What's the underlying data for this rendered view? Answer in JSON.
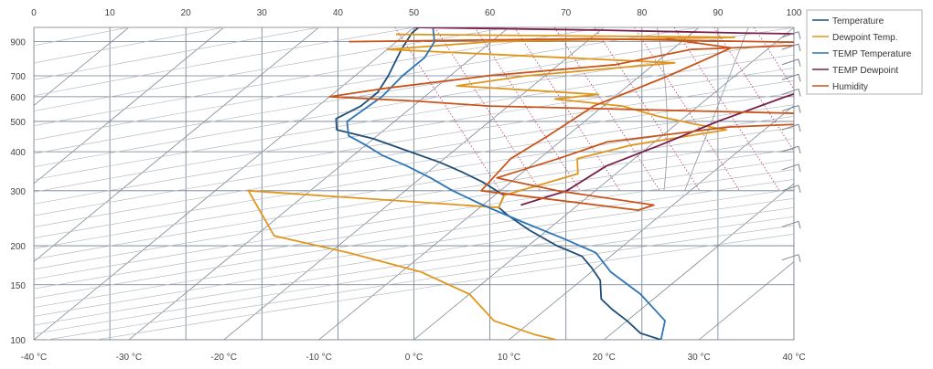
{
  "chart_data": {
    "type": "line",
    "title": "",
    "top_axis": {
      "label": "",
      "ticks": [
        "0",
        "10",
        "20",
        "30",
        "40",
        "50",
        "60",
        "70",
        "80",
        "90",
        "100"
      ],
      "range": [
        0,
        100
      ]
    },
    "bottom_axis": {
      "label": "",
      "ticks": [
        "-40 °C",
        "-30 °C",
        "-20 °C",
        "-10 °C",
        "0 °C",
        "10 °C",
        "20 °C",
        "30 °C",
        "40 °C"
      ],
      "range": [
        -40,
        40
      ]
    },
    "left_axis": {
      "label": "",
      "scale": "log-pressure",
      "ticks": [
        "100",
        "150",
        "200",
        "300",
        "400",
        "500",
        "600",
        "700",
        "900"
      ],
      "range": [
        1000,
        100
      ]
    },
    "legend": {
      "position": "top-right",
      "entries": [
        "Temperature",
        "Dewpoint Temp.",
        "TEMP Temperature",
        "TEMP Dewpoint",
        "Humidity"
      ]
    },
    "colors": {
      "Temperature": "#1f4e79",
      "Dewpoint Temp.": "#e0961c",
      "TEMP Temperature": "#2e75b6",
      "TEMP Dewpoint": "#7b1f4a",
      "Humidity": "#c9541a"
    },
    "series": [
      {
        "name": "Temperature",
        "points": [
          [
            -39.5,
            1000
          ],
          [
            -39.5,
            960
          ],
          [
            -38.5,
            850
          ],
          [
            -36.5,
            700
          ],
          [
            -35.5,
            620
          ],
          [
            -35.5,
            560
          ],
          [
            -36.5,
            510
          ],
          [
            -35,
            470
          ],
          [
            -30,
            440
          ],
          [
            -24.5,
            400
          ],
          [
            -20,
            370
          ],
          [
            -16.5,
            345
          ],
          [
            -13,
            320
          ],
          [
            -9,
            290
          ],
          [
            -8,
            265
          ],
          [
            -6,
            250
          ],
          [
            -2,
            225
          ],
          [
            3,
            200
          ],
          [
            7,
            185
          ],
          [
            9.5,
            170
          ],
          [
            12,
            155
          ],
          [
            14.5,
            135
          ],
          [
            17,
            125
          ],
          [
            20,
            115
          ],
          [
            23,
            105
          ],
          [
            26,
            100
          ]
        ]
      },
      {
        "name": "Dewpoint Temp.",
        "points": [
          [
            -41,
            950
          ],
          [
            -5,
            930
          ],
          [
            -30,
            900
          ],
          [
            -40,
            850
          ],
          [
            -8,
            770
          ],
          [
            -22,
            700
          ],
          [
            -28,
            650
          ],
          [
            -12,
            610
          ],
          [
            -16,
            590
          ],
          [
            -8,
            560
          ],
          [
            -3,
            520
          ],
          [
            2,
            490
          ],
          [
            6,
            470
          ],
          [
            -2,
            420
          ],
          [
            -6,
            380
          ],
          [
            -4,
            340
          ],
          [
            -9,
            290
          ],
          [
            -8,
            265
          ],
          [
            -36.5,
            300
          ],
          [
            -28,
            215
          ],
          [
            -18,
            190
          ],
          [
            -8,
            165
          ],
          [
            0,
            140
          ],
          [
            6,
            115
          ],
          [
            12,
            104
          ],
          [
            15,
            100
          ]
        ]
      },
      {
        "name": "TEMP Temperature",
        "points": [
          [
            -38,
            1000
          ],
          [
            -36,
            900
          ],
          [
            -35,
            800
          ],
          [
            -35,
            700
          ],
          [
            -34.5,
            600
          ],
          [
            -35,
            500
          ],
          [
            -33,
            450
          ],
          [
            -30,
            420
          ],
          [
            -27,
            390
          ],
          [
            -23,
            360
          ],
          [
            -19,
            330
          ],
          [
            -15,
            300
          ],
          [
            -10,
            270
          ],
          [
            -4,
            240
          ],
          [
            3,
            210
          ],
          [
            8,
            190
          ],
          [
            12,
            165
          ],
          [
            18,
            140
          ],
          [
            24,
            115
          ],
          [
            26,
            100
          ]
        ]
      },
      {
        "name": "TEMP Dewpoint",
        "points": [
          [
            -40,
            1000
          ],
          [
            -20,
            980
          ],
          [
            -5,
            960
          ],
          [
            5,
            950
          ],
          [
            20,
            930
          ],
          [
            18,
            900
          ],
          [
            15,
            820
          ],
          [
            12,
            700
          ],
          [
            8,
            600
          ],
          [
            4,
            500
          ],
          [
            1,
            420
          ],
          [
            -2,
            360
          ],
          [
            -3,
            300
          ],
          [
            -6,
            270
          ]
        ]
      },
      {
        "name": "Humidity",
        "points": [
          [
            -45,
            900
          ],
          [
            -20,
            920
          ],
          [
            8,
            890
          ],
          [
            -8,
            850
          ],
          [
            -14,
            760
          ],
          [
            -26,
            700
          ],
          [
            -35,
            640
          ],
          [
            -40,
            600
          ],
          [
            -30,
            580
          ],
          [
            -22,
            560
          ],
          [
            12,
            530
          ],
          [
            20,
            500
          ],
          [
            6,
            480
          ],
          [
            -5,
            430
          ],
          [
            -8,
            380
          ],
          [
            -12,
            330
          ],
          [
            -4,
            300
          ],
          [
            8,
            270
          ],
          [
            7,
            260
          ],
          [
            -12,
            300
          ],
          [
            -13,
            380
          ],
          [
            -12,
            450
          ],
          [
            -11,
            560
          ],
          [
            -7,
            700
          ],
          [
            -5,
            800
          ],
          [
            -4,
            860
          ],
          [
            -12,
            920
          ]
        ]
      }
    ]
  }
}
